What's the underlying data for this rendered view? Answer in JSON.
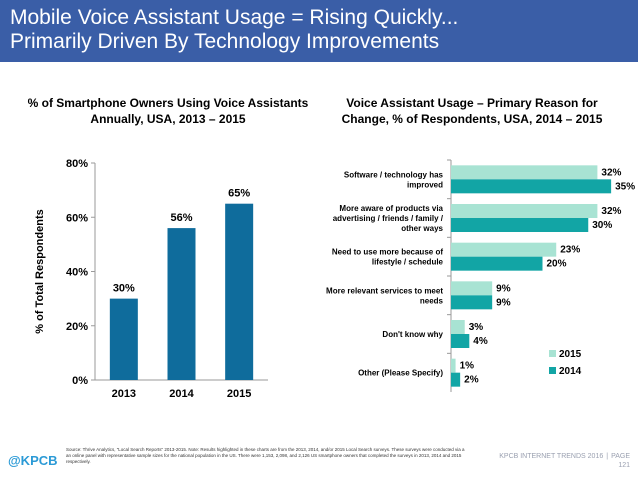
{
  "header": {
    "title": "Mobile Voice Assistant Usage = Rising Quickly...\nPrimarily Driven By Technology Improvements"
  },
  "colors": {
    "header_bg": "#3a5ea7",
    "bar_2015": "#a8e3d3",
    "bar_2014": "#12a5a5",
    "bar_left": "#0f6c9c"
  },
  "footer": {
    "source": "Source: Thrive Analytics, \"Local Search Reports\" 2013-2015.\nNote: Results highlighted in these charts are from the 2013, 2014, and/or 2015 Local Search surveys. These surveys were conducted via a an online panel with representative sample sizes for the national population in the US. There were 1,153, 2,098, and 2,126 US smartphone owners that completed the surveys in 2013, 2014 and 2015 respectively.",
    "logo": "@KPCB",
    "report": "KPCB INTERNET TRENDS 2016",
    "page_label": "PAGE",
    "page_number": "121"
  },
  "chart_data": [
    {
      "type": "bar",
      "title": "% of Smartphone Owners Using Voice Assistants\nAnnually, USA, 2013 – 2015",
      "ylabel": "% of Total Respondents",
      "categories": [
        "2013",
        "2014",
        "2015"
      ],
      "values": [
        30,
        56,
        65
      ],
      "value_labels": [
        "30%",
        "56%",
        "65%"
      ],
      "ylim": [
        0,
        80
      ],
      "yticks": [
        0,
        20,
        40,
        60,
        80
      ],
      "ytick_labels": [
        "0%",
        "20%",
        "40%",
        "60%",
        "80%"
      ],
      "grid": false
    },
    {
      "type": "bar",
      "orientation": "horizontal",
      "title": "Voice Assistant Usage – Primary Reason for\nChange, % of Respondents, USA, 2014 – 2015",
      "categories": [
        "Software / technology has\nimproved",
        "More aware of products via\nadvertising / friends / family /\nother ways",
        "Need to use more because of\nlifestyle / schedule",
        "More relevant services to meet\nneeds",
        "Don't know why",
        "Other (Please Specify)"
      ],
      "series": [
        {
          "name": "2015",
          "values": [
            32,
            32,
            23,
            9,
            3,
            1
          ],
          "labels": [
            "32%",
            "32%",
            "23%",
            "9%",
            "3%",
            "1%"
          ]
        },
        {
          "name": "2014",
          "values": [
            35,
            30,
            20,
            9,
            4,
            2
          ],
          "labels": [
            "35%",
            "30%",
            "20%",
            "9%",
            "4%",
            "2%"
          ]
        }
      ],
      "xlim": [
        0,
        40
      ],
      "legend_position": "bottom-right",
      "grid": false
    }
  ]
}
